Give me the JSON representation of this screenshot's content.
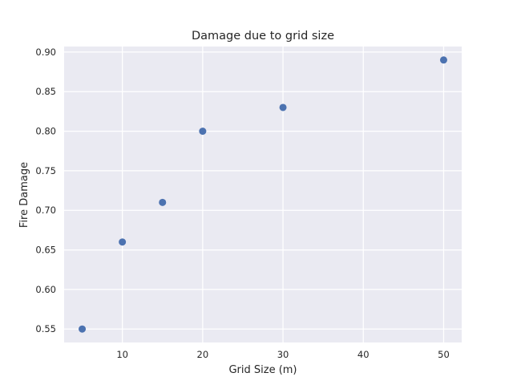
{
  "chart_data": {
    "type": "scatter",
    "title": "Damage due to grid size",
    "xlabel": "Grid Size (m)",
    "ylabel": "Fire Damage",
    "x": [
      5,
      10,
      15,
      20,
      30,
      50
    ],
    "y": [
      0.55,
      0.66,
      0.71,
      0.8,
      0.83,
      0.89
    ],
    "xlim": [
      2.75,
      52.25
    ],
    "ylim": [
      0.533,
      0.907
    ],
    "xticks": [
      10,
      20,
      30,
      40,
      50
    ],
    "xtick_labels": [
      "10",
      "20",
      "30",
      "40",
      "50"
    ],
    "yticks": [
      0.55,
      0.6,
      0.65,
      0.7,
      0.75,
      0.8,
      0.85,
      0.9
    ],
    "ytick_labels": [
      "0.55",
      "0.60",
      "0.65",
      "0.70",
      "0.75",
      "0.80",
      "0.85",
      "0.90"
    ],
    "grid": true,
    "colors": {
      "background": "#EAEAF2",
      "grid": "#FFFFFF",
      "point": "#4C72B0",
      "text": "#262626"
    }
  }
}
